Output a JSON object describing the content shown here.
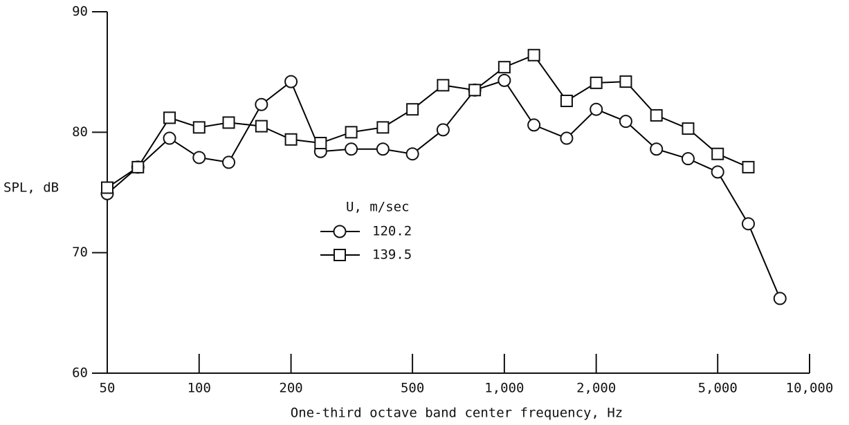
{
  "chart_data": {
    "type": "line",
    "xlabel": "One-third octave band center frequency, Hz",
    "ylabel": "SPL, dB",
    "legend_title": "U, m/sec",
    "xscale": "log",
    "xlim": [
      50,
      10000
    ],
    "ylim": [
      60,
      90
    ],
    "xticks": [
      50,
      100,
      200,
      500,
      {
        "value": 1000,
        "label": "1,000"
      },
      {
        "value": 2000,
        "label": "2,000"
      },
      {
        "value": 5000,
        "label": "5,000"
      },
      {
        "value": 10000,
        "label": "10,000"
      }
    ],
    "yticks": [
      60,
      70,
      80,
      90
    ],
    "series": [
      {
        "name": "120.2",
        "marker": "circle",
        "color": "#000000",
        "x": [
          50,
          63,
          80,
          100,
          125,
          160,
          200,
          250,
          315,
          400,
          500,
          630,
          800,
          1000,
          1250,
          1600,
          2000,
          2500,
          3150,
          4000,
          5000,
          6300,
          8000
        ],
        "values": [
          74.9,
          77.1,
          79.5,
          77.9,
          77.5,
          82.3,
          84.2,
          78.4,
          78.6,
          78.6,
          78.2,
          80.2,
          83.5,
          84.3,
          80.6,
          79.5,
          81.9,
          80.9,
          78.6,
          77.8,
          76.7,
          72.4,
          66.2
        ]
      },
      {
        "name": "139.5",
        "marker": "square",
        "color": "#000000",
        "x": [
          50,
          63,
          80,
          100,
          125,
          160,
          200,
          250,
          315,
          400,
          500,
          630,
          800,
          1000,
          1250,
          1600,
          2000,
          2500,
          3150,
          4000,
          5000,
          6300
        ],
        "values": [
          75.4,
          77.1,
          81.2,
          80.4,
          80.8,
          80.5,
          79.4,
          79.1,
          80.0,
          80.4,
          81.9,
          83.9,
          83.5,
          85.4,
          86.4,
          82.6,
          84.1,
          84.2,
          81.4,
          80.3,
          78.2,
          77.1
        ]
      }
    ]
  }
}
